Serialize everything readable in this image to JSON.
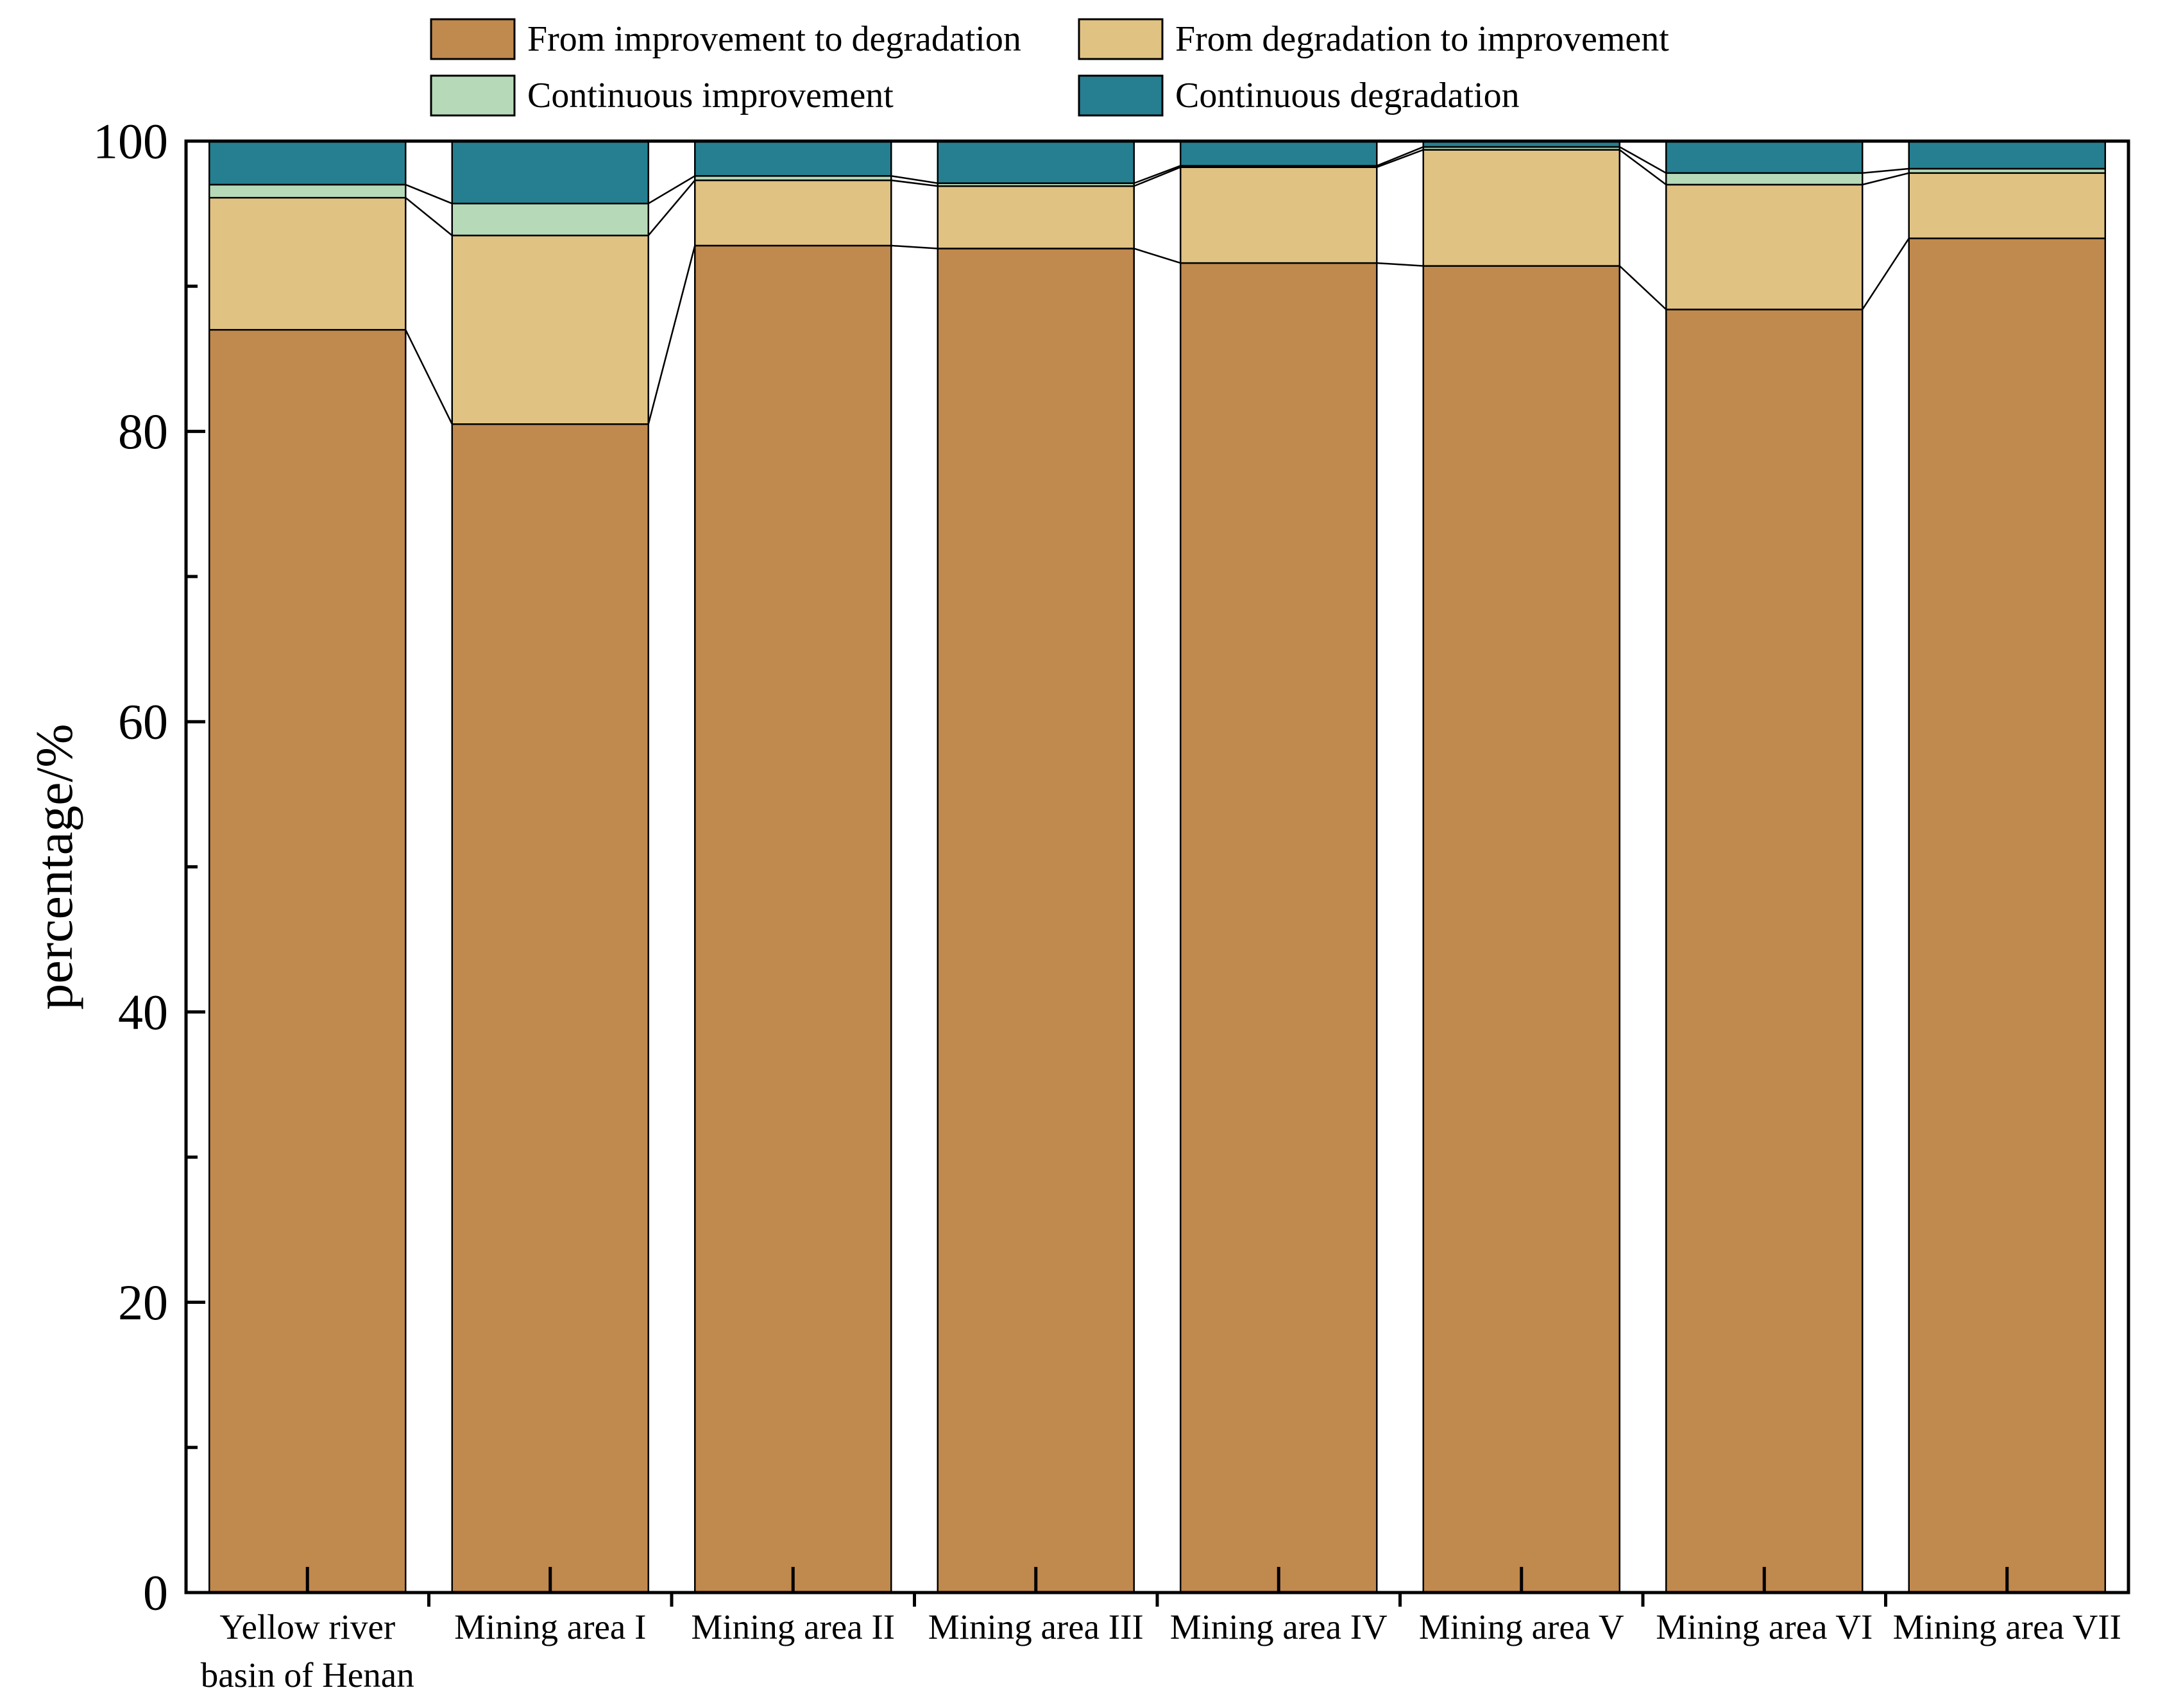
{
  "chart_data": {
    "type": "bar",
    "stacked": true,
    "title": "",
    "xlabel": "",
    "ylabel": "percentage/%",
    "ylim": [
      0,
      100
    ],
    "yticks": [
      0,
      20,
      40,
      60,
      80,
      100
    ],
    "categories": [
      [
        "Yellow river",
        "basin of Henan"
      ],
      [
        "Mining area I"
      ],
      [
        "Mining area II"
      ],
      [
        "Mining area III"
      ],
      [
        "Mining area IV"
      ],
      [
        "Mining area V"
      ],
      [
        "Mining area VI"
      ],
      [
        "Mining area VII"
      ]
    ],
    "series": [
      {
        "name": "From improvement to degradation",
        "color": "#C0894D",
        "values": [
          87.0,
          80.5,
          92.8,
          92.6,
          91.6,
          91.4,
          88.4,
          93.3
        ]
      },
      {
        "name": "From degradation to improvement",
        "color": "#E0C283",
        "values": [
          9.1,
          13.0,
          4.5,
          4.3,
          6.6,
          8.0,
          8.6,
          4.5
        ]
      },
      {
        "name": "Continuous improvement",
        "color": "#B6DAB8",
        "values": [
          0.9,
          2.2,
          0.3,
          0.2,
          0.1,
          0.2,
          0.8,
          0.3
        ]
      },
      {
        "name": "Continuous degradation",
        "color": "#257F90",
        "values": [
          3.0,
          4.3,
          2.4,
          2.9,
          1.7,
          0.4,
          2.2,
          1.9
        ]
      }
    ],
    "legend": {
      "position": "top",
      "columns": 2,
      "order": [
        0,
        1,
        2,
        3
      ]
    }
  }
}
